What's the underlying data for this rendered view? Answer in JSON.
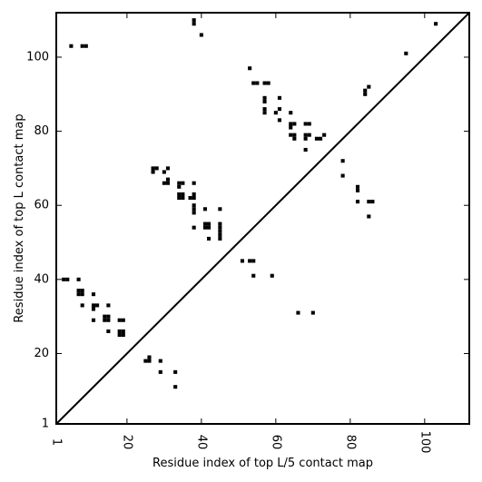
{
  "chart_data": {
    "type": "heatmap",
    "title": "",
    "xlabel": "Residue index of top L/5 contact map",
    "ylabel": "Residue index of top L contact map",
    "xlim": [
      1,
      112
    ],
    "ylim": [
      1,
      112
    ],
    "xticks": [
      1,
      20,
      40,
      60,
      80,
      100
    ],
    "yticks": [
      1,
      20,
      40,
      60,
      80,
      100
    ],
    "diagonal": true,
    "grid": false,
    "upper_contacts": [
      [
        5,
        103
      ],
      [
        8,
        103
      ],
      [
        9,
        103
      ],
      [
        38,
        110
      ],
      [
        38,
        109
      ],
      [
        40,
        106
      ],
      [
        103,
        109
      ],
      [
        95,
        101
      ],
      [
        53,
        97
      ],
      [
        54,
        93
      ],
      [
        55,
        93
      ],
      [
        57,
        93
      ],
      [
        58,
        93
      ],
      [
        57,
        89
      ],
      [
        57,
        88
      ],
      [
        57,
        86
      ],
      [
        57,
        85
      ],
      [
        61,
        89
      ],
      [
        61,
        86
      ],
      [
        60,
        85
      ],
      [
        61,
        83
      ],
      [
        64,
        85
      ],
      [
        64,
        82
      ],
      [
        64,
        81
      ],
      [
        65,
        82
      ],
      [
        64,
        79
      ],
      [
        65,
        79
      ],
      [
        65,
        78
      ],
      [
        68,
        82
      ],
      [
        69,
        82
      ],
      [
        68,
        79
      ],
      [
        69,
        79
      ],
      [
        68,
        78
      ],
      [
        71,
        78
      ],
      [
        72,
        78
      ],
      [
        73,
        79
      ],
      [
        68,
        75
      ],
      [
        84,
        91
      ],
      [
        84,
        90
      ],
      [
        85,
        92
      ],
      [
        78,
        72
      ],
      [
        78,
        68
      ],
      [
        82,
        65
      ],
      [
        82,
        64
      ],
      [
        82,
        61
      ],
      [
        85,
        61
      ],
      [
        86,
        61
      ],
      [
        85,
        57
      ],
      [
        27,
        70
      ],
      [
        28,
        70
      ],
      [
        27,
        69
      ],
      [
        30,
        69
      ],
      [
        31,
        70
      ],
      [
        30,
        66
      ],
      [
        31,
        67
      ],
      [
        31,
        66
      ],
      [
        34,
        66
      ],
      [
        35,
        66
      ],
      [
        34,
        65
      ],
      [
        34,
        63
      ],
      [
        35,
        63
      ],
      [
        34,
        62
      ],
      [
        35,
        62
      ],
      [
        37,
        62
      ],
      [
        38,
        63
      ],
      [
        38,
        62
      ],
      [
        38,
        66
      ],
      [
        38,
        60
      ],
      [
        38,
        59
      ],
      [
        38,
        58
      ],
      [
        41,
        59
      ],
      [
        38,
        54
      ],
      [
        41,
        55
      ],
      [
        42,
        55
      ],
      [
        41,
        54
      ],
      [
        42,
        54
      ],
      [
        45,
        55
      ],
      [
        45,
        54
      ],
      [
        45,
        53
      ],
      [
        45,
        52
      ],
      [
        45,
        51
      ],
      [
        42,
        51
      ],
      [
        45,
        59
      ],
      [
        51,
        45
      ],
      [
        53,
        45
      ],
      [
        54,
        45
      ],
      [
        54,
        41
      ],
      [
        59,
        41
      ],
      [
        66,
        31
      ],
      [
        70,
        31
      ]
    ],
    "lower_contacts": [
      [
        3,
        40
      ],
      [
        4,
        40
      ],
      [
        7,
        40
      ],
      [
        7,
        37
      ],
      [
        8,
        37
      ],
      [
        7,
        36
      ],
      [
        8,
        36
      ],
      [
        11,
        36
      ],
      [
        8,
        33
      ],
      [
        11,
        33
      ],
      [
        12,
        33
      ],
      [
        11,
        32
      ],
      [
        15,
        33
      ],
      [
        14,
        30
      ],
      [
        15,
        30
      ],
      [
        14,
        29
      ],
      [
        15,
        29
      ],
      [
        11,
        29
      ],
      [
        18,
        29
      ],
      [
        19,
        29
      ],
      [
        15,
        26
      ],
      [
        18,
        26
      ],
      [
        19,
        26
      ],
      [
        18,
        25
      ],
      [
        19,
        25
      ],
      [
        25,
        18
      ],
      [
        26,
        18
      ],
      [
        26,
        19
      ],
      [
        29,
        18
      ],
      [
        29,
        15
      ],
      [
        33,
        15
      ],
      [
        33,
        11
      ]
    ]
  }
}
